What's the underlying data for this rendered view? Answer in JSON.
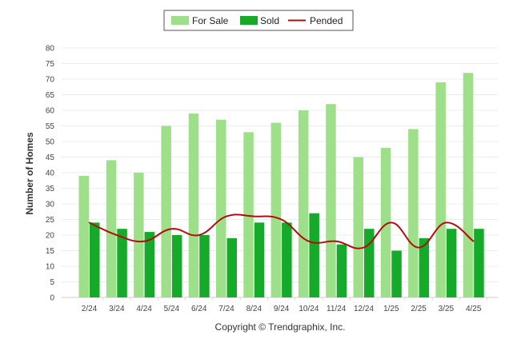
{
  "chart_data": {
    "type": "bar",
    "categories": [
      "2/24",
      "3/24",
      "4/24",
      "5/24",
      "6/24",
      "7/24",
      "8/24",
      "9/24",
      "10/24",
      "11/24",
      "12/24",
      "1/25",
      "2/25",
      "3/25",
      "4/25"
    ],
    "series": [
      {
        "name": "For Sale",
        "type": "bar",
        "color": "#9ee08a",
        "values": [
          39,
          44,
          40,
          55,
          59,
          57,
          53,
          56,
          60,
          62,
          45,
          48,
          54,
          69,
          72
        ]
      },
      {
        "name": "Sold",
        "type": "bar",
        "color": "#15aa2a",
        "values": [
          24,
          22,
          21,
          20,
          20,
          19,
          24,
          24,
          27,
          17,
          22,
          15,
          19,
          22,
          22
        ]
      },
      {
        "name": "Pended",
        "type": "line",
        "color": "#b50d0d",
        "values": [
          24,
          20,
          18,
          22,
          20,
          26,
          26,
          25,
          18,
          18,
          16,
          24,
          16,
          24,
          18
        ]
      }
    ],
    "ylabel": "Number of Homes",
    "xlabel": "",
    "ylim": [
      0,
      80
    ],
    "yticks": [
      0,
      5,
      10,
      15,
      20,
      25,
      30,
      35,
      40,
      45,
      50,
      55,
      60,
      65,
      70,
      75,
      80
    ],
    "grid": true,
    "legend_position": "top-center"
  },
  "footer": {
    "copyright": "Copyright © Trendgraphix, Inc."
  }
}
